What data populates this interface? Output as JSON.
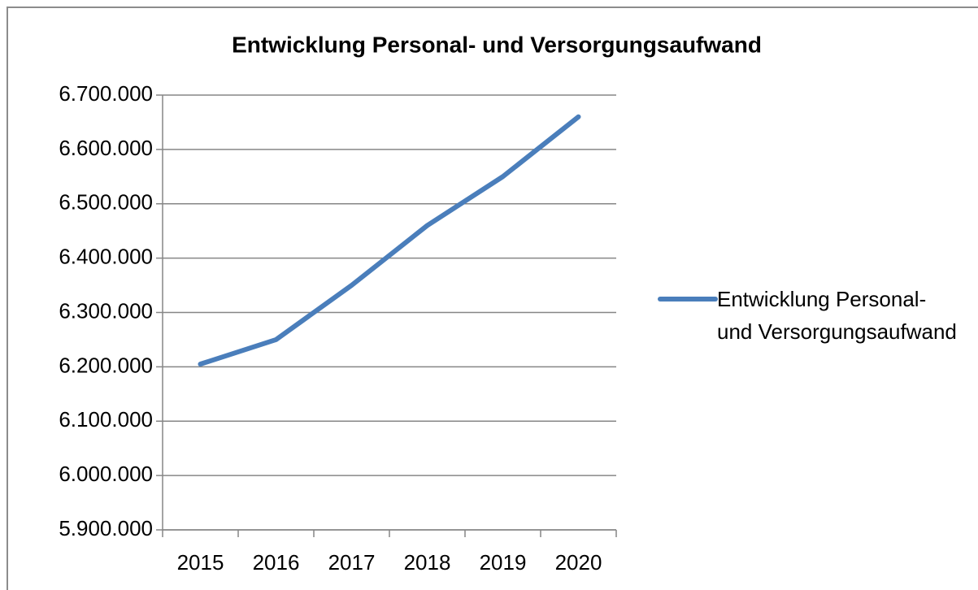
{
  "chart_data": {
    "type": "line",
    "title": "Entwicklung Personal- und Versorgungsaufwand",
    "categories": [
      "2015",
      "2016",
      "2017",
      "2018",
      "2019",
      "2020"
    ],
    "series": [
      {
        "name": "Entwicklung Personal- und Versorgungsaufwand",
        "color": "#4a7ebb",
        "values": [
          6205000,
          6250000,
          6350000,
          6460000,
          6550000,
          6660000
        ]
      }
    ],
    "ylim": [
      5900000,
      6700000
    ],
    "yticks": [
      {
        "value": 5900000,
        "label": "5.900.000"
      },
      {
        "value": 6000000,
        "label": "6.000.000"
      },
      {
        "value": 6100000,
        "label": "6.100.000"
      },
      {
        "value": 6200000,
        "label": "6.200.000"
      },
      {
        "value": 6300000,
        "label": "6.300.000"
      },
      {
        "value": 6400000,
        "label": "6.400.000"
      },
      {
        "value": 6500000,
        "label": "6.500.000"
      },
      {
        "value": 6600000,
        "label": "6.600.000"
      },
      {
        "value": 6700000,
        "label": "6.700.000"
      }
    ],
    "grid": true,
    "legend": "right"
  }
}
